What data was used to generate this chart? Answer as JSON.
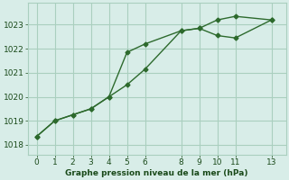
{
  "line1_x": [
    0,
    1,
    2,
    3,
    4,
    5,
    6,
    8,
    9,
    10,
    11,
    13
  ],
  "line1_y": [
    1018.35,
    1019.0,
    1019.25,
    1019.5,
    1020.0,
    1021.85,
    1022.2,
    1022.75,
    1022.85,
    1023.2,
    1023.35,
    1023.2
  ],
  "line2_x": [
    0,
    1,
    2,
    3,
    4,
    5,
    6,
    8,
    9,
    10,
    11,
    13
  ],
  "line2_y": [
    1018.35,
    1019.0,
    1019.25,
    1019.5,
    1020.0,
    1020.5,
    1021.15,
    1022.75,
    1022.85,
    1022.55,
    1022.45,
    1023.2
  ],
  "line_color": "#2d6a2d",
  "bg_color": "#d8ede8",
  "grid_color": "#aacfbf",
  "xlabel": "Graphe pression niveau de la mer (hPa)",
  "xlabel_color": "#1a4a1a",
  "tick_color": "#1a4a1a",
  "xticks": [
    0,
    1,
    2,
    3,
    4,
    5,
    6,
    8,
    9,
    10,
    11,
    13
  ],
  "yticks": [
    1018,
    1019,
    1020,
    1021,
    1022,
    1023
  ],
  "ylim": [
    1017.6,
    1023.9
  ],
  "xlim": [
    -0.5,
    13.8
  ]
}
